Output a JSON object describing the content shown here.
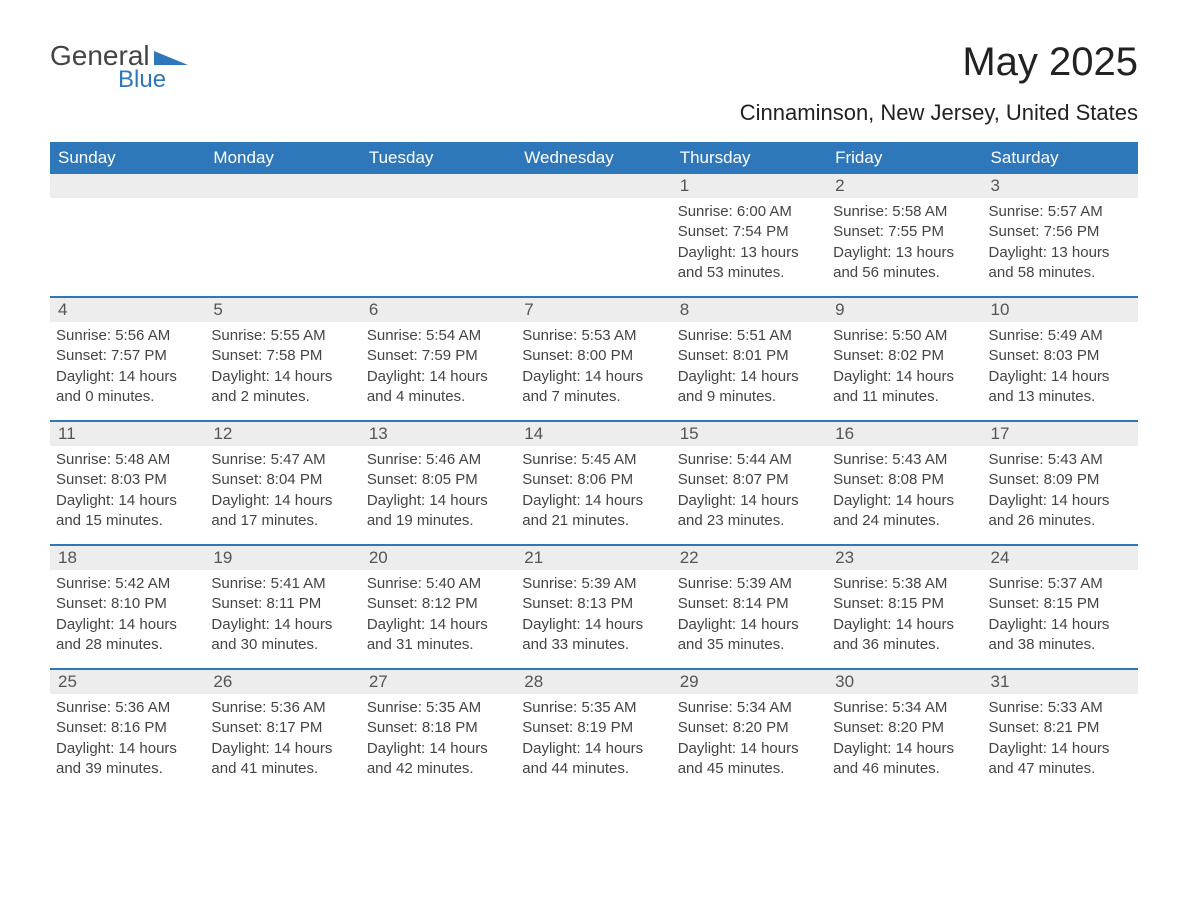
{
  "logo": {
    "text1": "General",
    "text2": "Blue",
    "accent_color": "#2e77bb"
  },
  "title": "May 2025",
  "subtitle": "Cinnaminson, New Jersey, United States",
  "colors": {
    "header_bg": "#2e77bb",
    "header_text": "#ffffff",
    "daynum_bg": "#ededed",
    "border": "#2e77bb",
    "body_text": "#444444"
  },
  "weekdays": [
    "Sunday",
    "Monday",
    "Tuesday",
    "Wednesday",
    "Thursday",
    "Friday",
    "Saturday"
  ],
  "weeks": [
    [
      {
        "n": "",
        "sunrise": "",
        "sunset": "",
        "daylight": ""
      },
      {
        "n": "",
        "sunrise": "",
        "sunset": "",
        "daylight": ""
      },
      {
        "n": "",
        "sunrise": "",
        "sunset": "",
        "daylight": ""
      },
      {
        "n": "",
        "sunrise": "",
        "sunset": "",
        "daylight": ""
      },
      {
        "n": "1",
        "sunrise": "Sunrise: 6:00 AM",
        "sunset": "Sunset: 7:54 PM",
        "daylight": "Daylight: 13 hours and 53 minutes."
      },
      {
        "n": "2",
        "sunrise": "Sunrise: 5:58 AM",
        "sunset": "Sunset: 7:55 PM",
        "daylight": "Daylight: 13 hours and 56 minutes."
      },
      {
        "n": "3",
        "sunrise": "Sunrise: 5:57 AM",
        "sunset": "Sunset: 7:56 PM",
        "daylight": "Daylight: 13 hours and 58 minutes."
      }
    ],
    [
      {
        "n": "4",
        "sunrise": "Sunrise: 5:56 AM",
        "sunset": "Sunset: 7:57 PM",
        "daylight": "Daylight: 14 hours and 0 minutes."
      },
      {
        "n": "5",
        "sunrise": "Sunrise: 5:55 AM",
        "sunset": "Sunset: 7:58 PM",
        "daylight": "Daylight: 14 hours and 2 minutes."
      },
      {
        "n": "6",
        "sunrise": "Sunrise: 5:54 AM",
        "sunset": "Sunset: 7:59 PM",
        "daylight": "Daylight: 14 hours and 4 minutes."
      },
      {
        "n": "7",
        "sunrise": "Sunrise: 5:53 AM",
        "sunset": "Sunset: 8:00 PM",
        "daylight": "Daylight: 14 hours and 7 minutes."
      },
      {
        "n": "8",
        "sunrise": "Sunrise: 5:51 AM",
        "sunset": "Sunset: 8:01 PM",
        "daylight": "Daylight: 14 hours and 9 minutes."
      },
      {
        "n": "9",
        "sunrise": "Sunrise: 5:50 AM",
        "sunset": "Sunset: 8:02 PM",
        "daylight": "Daylight: 14 hours and 11 minutes."
      },
      {
        "n": "10",
        "sunrise": "Sunrise: 5:49 AM",
        "sunset": "Sunset: 8:03 PM",
        "daylight": "Daylight: 14 hours and 13 minutes."
      }
    ],
    [
      {
        "n": "11",
        "sunrise": "Sunrise: 5:48 AM",
        "sunset": "Sunset: 8:03 PM",
        "daylight": "Daylight: 14 hours and 15 minutes."
      },
      {
        "n": "12",
        "sunrise": "Sunrise: 5:47 AM",
        "sunset": "Sunset: 8:04 PM",
        "daylight": "Daylight: 14 hours and 17 minutes."
      },
      {
        "n": "13",
        "sunrise": "Sunrise: 5:46 AM",
        "sunset": "Sunset: 8:05 PM",
        "daylight": "Daylight: 14 hours and 19 minutes."
      },
      {
        "n": "14",
        "sunrise": "Sunrise: 5:45 AM",
        "sunset": "Sunset: 8:06 PM",
        "daylight": "Daylight: 14 hours and 21 minutes."
      },
      {
        "n": "15",
        "sunrise": "Sunrise: 5:44 AM",
        "sunset": "Sunset: 8:07 PM",
        "daylight": "Daylight: 14 hours and 23 minutes."
      },
      {
        "n": "16",
        "sunrise": "Sunrise: 5:43 AM",
        "sunset": "Sunset: 8:08 PM",
        "daylight": "Daylight: 14 hours and 24 minutes."
      },
      {
        "n": "17",
        "sunrise": "Sunrise: 5:43 AM",
        "sunset": "Sunset: 8:09 PM",
        "daylight": "Daylight: 14 hours and 26 minutes."
      }
    ],
    [
      {
        "n": "18",
        "sunrise": "Sunrise: 5:42 AM",
        "sunset": "Sunset: 8:10 PM",
        "daylight": "Daylight: 14 hours and 28 minutes."
      },
      {
        "n": "19",
        "sunrise": "Sunrise: 5:41 AM",
        "sunset": "Sunset: 8:11 PM",
        "daylight": "Daylight: 14 hours and 30 minutes."
      },
      {
        "n": "20",
        "sunrise": "Sunrise: 5:40 AM",
        "sunset": "Sunset: 8:12 PM",
        "daylight": "Daylight: 14 hours and 31 minutes."
      },
      {
        "n": "21",
        "sunrise": "Sunrise: 5:39 AM",
        "sunset": "Sunset: 8:13 PM",
        "daylight": "Daylight: 14 hours and 33 minutes."
      },
      {
        "n": "22",
        "sunrise": "Sunrise: 5:39 AM",
        "sunset": "Sunset: 8:14 PM",
        "daylight": "Daylight: 14 hours and 35 minutes."
      },
      {
        "n": "23",
        "sunrise": "Sunrise: 5:38 AM",
        "sunset": "Sunset: 8:15 PM",
        "daylight": "Daylight: 14 hours and 36 minutes."
      },
      {
        "n": "24",
        "sunrise": "Sunrise: 5:37 AM",
        "sunset": "Sunset: 8:15 PM",
        "daylight": "Daylight: 14 hours and 38 minutes."
      }
    ],
    [
      {
        "n": "25",
        "sunrise": "Sunrise: 5:36 AM",
        "sunset": "Sunset: 8:16 PM",
        "daylight": "Daylight: 14 hours and 39 minutes."
      },
      {
        "n": "26",
        "sunrise": "Sunrise: 5:36 AM",
        "sunset": "Sunset: 8:17 PM",
        "daylight": "Daylight: 14 hours and 41 minutes."
      },
      {
        "n": "27",
        "sunrise": "Sunrise: 5:35 AM",
        "sunset": "Sunset: 8:18 PM",
        "daylight": "Daylight: 14 hours and 42 minutes."
      },
      {
        "n": "28",
        "sunrise": "Sunrise: 5:35 AM",
        "sunset": "Sunset: 8:19 PM",
        "daylight": "Daylight: 14 hours and 44 minutes."
      },
      {
        "n": "29",
        "sunrise": "Sunrise: 5:34 AM",
        "sunset": "Sunset: 8:20 PM",
        "daylight": "Daylight: 14 hours and 45 minutes."
      },
      {
        "n": "30",
        "sunrise": "Sunrise: 5:34 AM",
        "sunset": "Sunset: 8:20 PM",
        "daylight": "Daylight: 14 hours and 46 minutes."
      },
      {
        "n": "31",
        "sunrise": "Sunrise: 5:33 AM",
        "sunset": "Sunset: 8:21 PM",
        "daylight": "Daylight: 14 hours and 47 minutes."
      }
    ]
  ]
}
